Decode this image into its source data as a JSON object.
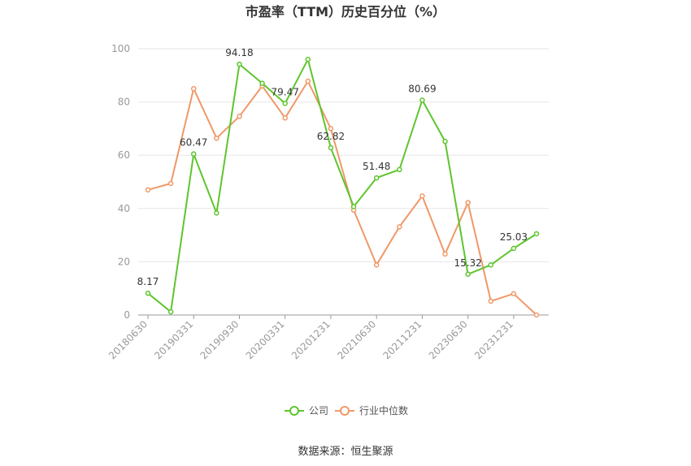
{
  "chart_data": {
    "type": "line",
    "title": "市盈率（TTM）历史百分位（%）",
    "x": [
      "20180630",
      "20180930",
      "20190331",
      "20190630",
      "20190930",
      "20191231",
      "20200331",
      "20200630",
      "20201231",
      "20210331",
      "20210630",
      "20210930",
      "20211231",
      "20220630",
      "20230630",
      "20230930",
      "20231231",
      "20240331"
    ],
    "xticks": [
      "20180630",
      "20190331",
      "20190930",
      "20200331",
      "20201231",
      "20210630",
      "20211231",
      "20230630",
      "20231231"
    ],
    "yticks": [
      0,
      20,
      40,
      60,
      80,
      100
    ],
    "ylim": [
      0,
      100
    ],
    "series": [
      {
        "name": "公司",
        "color": "#5ec52d",
        "values": [
          8.17,
          1.2,
          60.47,
          38.3,
          94.18,
          87.0,
          79.47,
          96.0,
          62.82,
          40.7,
          51.48,
          54.6,
          80.69,
          65.2,
          15.32,
          18.8,
          25.03,
          30.5
        ],
        "labels": [
          "8.17",
          "",
          "60.47",
          "",
          "94.18",
          "",
          "79.47",
          "",
          "62.82",
          "",
          "51.48",
          "",
          "80.69",
          "",
          "15.32",
          "",
          "25.03",
          ""
        ]
      },
      {
        "name": "行业中位数",
        "color": "#f09868",
        "values": [
          47.0,
          49.4,
          85.0,
          66.4,
          74.6,
          86.0,
          74.0,
          87.8,
          70.0,
          39.4,
          18.8,
          33.1,
          44.7,
          22.9,
          42.2,
          5.2,
          8.0,
          0.0
        ],
        "labels": []
      }
    ],
    "grid": true,
    "legend_position": "bottom"
  },
  "footer": {
    "source": "数据来源：恒生聚源"
  }
}
